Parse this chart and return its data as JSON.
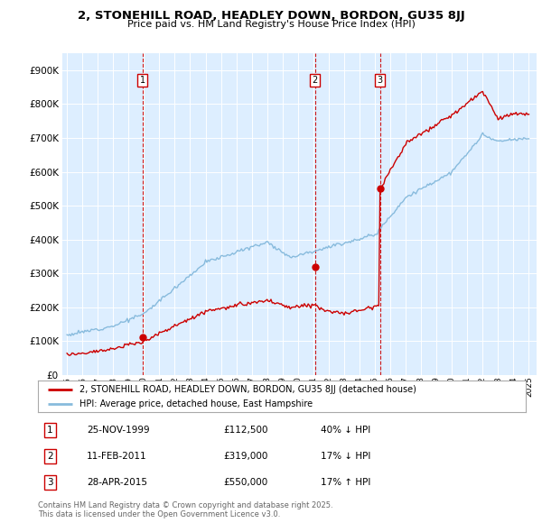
{
  "title": "2, STONEHILL ROAD, HEADLEY DOWN, BORDON, GU35 8JJ",
  "subtitle": "Price paid vs. HM Land Registry's House Price Index (HPI)",
  "hpi_label": "HPI: Average price, detached house, East Hampshire",
  "property_label": "2, STONEHILL ROAD, HEADLEY DOWN, BORDON, GU35 8JJ (detached house)",
  "sale_color": "#cc0000",
  "hpi_color": "#88bbdd",
  "plot_bg": "#ddeeff",
  "ylim": [
    0,
    950000
  ],
  "yticks": [
    0,
    100000,
    200000,
    300000,
    400000,
    500000,
    600000,
    700000,
    800000,
    900000
  ],
  "sale_dates": [
    1999.9,
    2011.1,
    2015.33
  ],
  "sale_prices": [
    112500,
    319000,
    550000
  ],
  "sale_labels": [
    "1",
    "2",
    "3"
  ],
  "footer": "Contains HM Land Registry data © Crown copyright and database right 2025.\nThis data is licensed under the Open Government Licence v3.0.",
  "table_rows": [
    [
      "1",
      "25-NOV-1999",
      "£112,500",
      "40% ↓ HPI"
    ],
    [
      "2",
      "11-FEB-2011",
      "£319,000",
      "17% ↓ HPI"
    ],
    [
      "3",
      "28-APR-2015",
      "£550,000",
      "17% ↑ HPI"
    ]
  ]
}
